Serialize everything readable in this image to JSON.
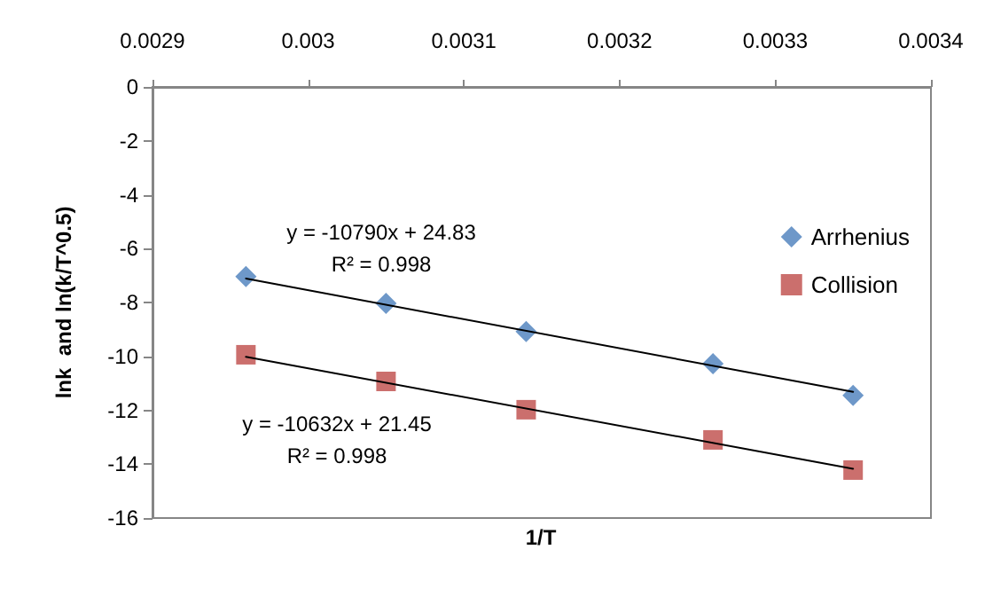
{
  "chart_data": {
    "type": "scatter",
    "xlabel": "1/T",
    "ylabel": "lnk  and ln(k/T^0.5)",
    "xlim": [
      0.0029,
      0.0034
    ],
    "xticks": [
      0.0029,
      0.003,
      0.0031,
      0.0032,
      0.0033,
      0.0034
    ],
    "ylim": [
      -16,
      0
    ],
    "yticks": [
      0,
      -2,
      -4,
      -6,
      -8,
      -10,
      -12,
      -14,
      -16
    ],
    "series": [
      {
        "name": "Arrhenius",
        "color": "#4a7ebb",
        "marker": "diamond",
        "x": [
          0.00296,
          0.00305,
          0.00314,
          0.00326,
          0.00335
        ],
        "values": [
          -7.04,
          -8.03,
          -9.08,
          -10.27,
          -11.45
        ]
      },
      {
        "name": "Collision",
        "color": "#be4b48",
        "marker": "square",
        "x": [
          0.00296,
          0.00305,
          0.00314,
          0.00326,
          0.00335
        ],
        "values": [
          -9.94,
          -10.93,
          -11.98,
          -13.1,
          -14.22
        ]
      },
      {
        "type": "line",
        "color": "#000000",
        "marker": "none",
        "x": [
          0.00296,
          0.00335
        ],
        "values": [
          -7.11,
          -11.32
        ]
      },
      {
        "type": "line",
        "color": "#000000",
        "marker": "none",
        "x": [
          0.00296,
          0.00335
        ],
        "values": [
          -10.02,
          -14.17
        ]
      }
    ],
    "annotations": [
      "y = -10790x + 24.83",
      "R² = 0.998",
      "y = -10632x + 21.45",
      "R² = 0.998"
    ],
    "legend": "right",
    "grid": false
  }
}
